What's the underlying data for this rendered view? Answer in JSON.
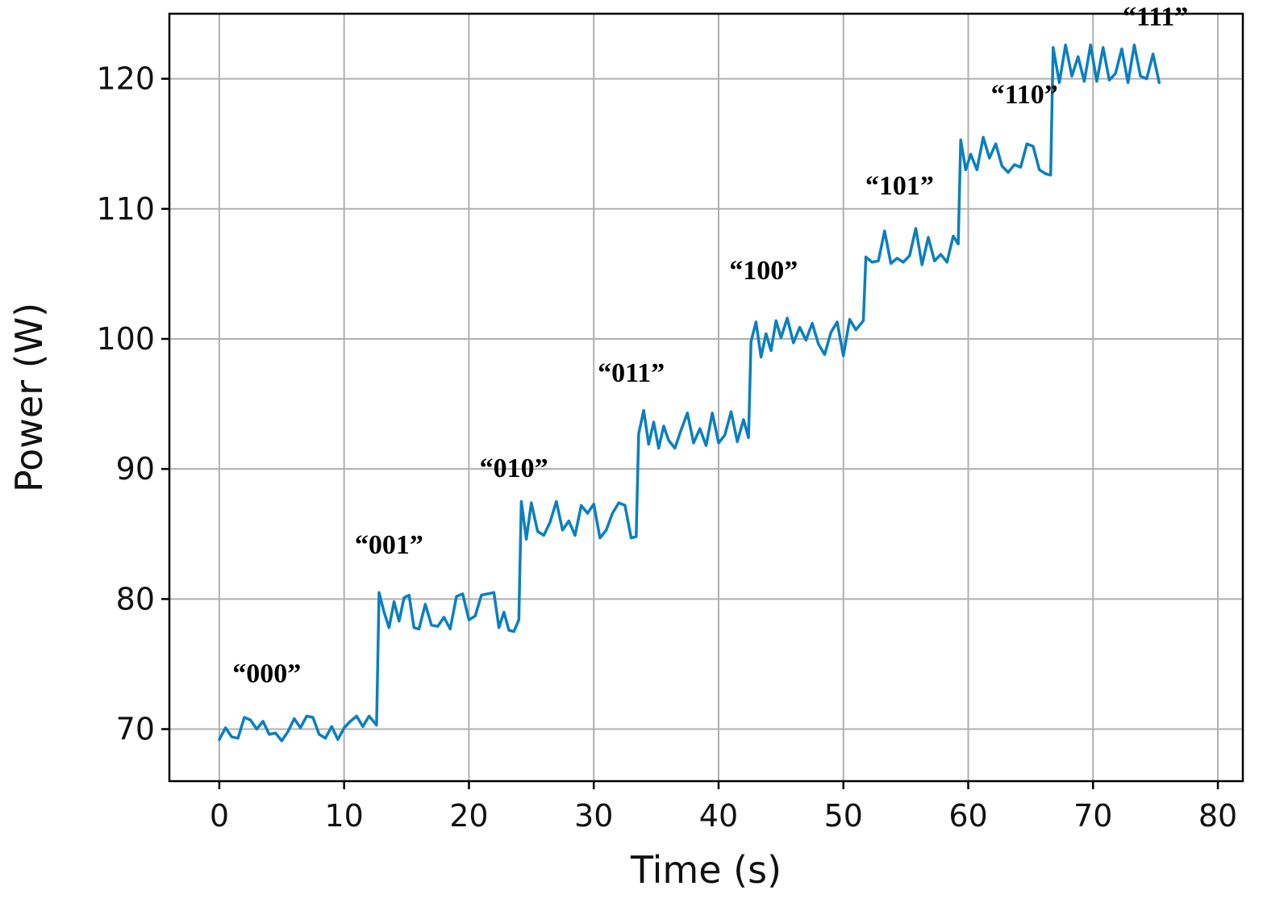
{
  "chart_data": {
    "type": "line",
    "title": "",
    "xlabel": "Time (s)",
    "ylabel": "Power (W)",
    "xlim": [
      -4,
      82
    ],
    "ylim": [
      66,
      125
    ],
    "xticks": [
      0,
      10,
      20,
      30,
      40,
      50,
      60,
      70,
      80
    ],
    "yticks": [
      70,
      80,
      90,
      100,
      110,
      120
    ],
    "grid": true,
    "line_color": "#0a7fc0",
    "annotations": [
      {
        "text": "“000”",
        "x": 3.8,
        "y": 73.6
      },
      {
        "text": "“001”",
        "x": 13.6,
        "y": 83.5
      },
      {
        "text": "“010”",
        "x": 23.6,
        "y": 89.4
      },
      {
        "text": "“011”",
        "x": 33.0,
        "y": 96.7
      },
      {
        "text": "“100”",
        "x": 43.6,
        "y": 104.6
      },
      {
        "text": "“101”",
        "x": 54.5,
        "y": 111.1
      },
      {
        "text": "“110”",
        "x": 64.5,
        "y": 118.1
      },
      {
        "text": "“111”",
        "x": 75.0,
        "y": 124.1
      }
    ],
    "series": [
      {
        "values": [
          [
            0.0,
            69.2
          ],
          [
            0.5,
            70.1
          ],
          [
            1.0,
            69.4
          ],
          [
            1.5,
            69.3
          ],
          [
            2.0,
            70.9
          ],
          [
            2.5,
            70.7
          ],
          [
            3.0,
            70.0
          ],
          [
            3.5,
            70.6
          ],
          [
            4.0,
            69.6
          ],
          [
            4.5,
            69.7
          ],
          [
            5.0,
            69.1
          ],
          [
            5.5,
            69.8
          ],
          [
            6.0,
            70.8
          ],
          [
            6.5,
            70.1
          ],
          [
            7.0,
            71.0
          ],
          [
            7.5,
            70.9
          ],
          [
            8.0,
            69.6
          ],
          [
            8.5,
            69.3
          ],
          [
            9.0,
            70.2
          ],
          [
            9.5,
            69.2
          ],
          [
            10.0,
            70.1
          ],
          [
            10.5,
            70.6
          ],
          [
            11.0,
            71.0
          ],
          [
            11.5,
            70.2
          ],
          [
            12.0,
            71.0
          ],
          [
            12.6,
            70.3
          ],
          [
            12.8,
            80.5
          ],
          [
            13.2,
            79.0
          ],
          [
            13.6,
            77.8
          ],
          [
            14.0,
            79.8
          ],
          [
            14.4,
            78.3
          ],
          [
            14.8,
            80.1
          ],
          [
            15.2,
            80.3
          ],
          [
            15.6,
            77.8
          ],
          [
            16.0,
            77.7
          ],
          [
            16.5,
            79.6
          ],
          [
            17.0,
            78.0
          ],
          [
            17.5,
            77.9
          ],
          [
            18.0,
            78.6
          ],
          [
            18.5,
            77.7
          ],
          [
            19.0,
            80.2
          ],
          [
            19.5,
            80.4
          ],
          [
            20.0,
            78.4
          ],
          [
            20.5,
            78.7
          ],
          [
            21.0,
            80.3
          ],
          [
            21.5,
            80.4
          ],
          [
            22.0,
            80.5
          ],
          [
            22.4,
            77.8
          ],
          [
            22.8,
            79.0
          ],
          [
            23.2,
            77.6
          ],
          [
            23.6,
            77.5
          ],
          [
            24.0,
            78.4
          ],
          [
            24.2,
            87.5
          ],
          [
            24.6,
            84.6
          ],
          [
            25.0,
            87.4
          ],
          [
            25.5,
            85.2
          ],
          [
            26.0,
            84.9
          ],
          [
            26.5,
            85.9
          ],
          [
            27.0,
            87.5
          ],
          [
            27.5,
            85.3
          ],
          [
            28.0,
            86.0
          ],
          [
            28.5,
            84.9
          ],
          [
            29.0,
            87.2
          ],
          [
            29.5,
            86.6
          ],
          [
            30.0,
            87.3
          ],
          [
            30.5,
            84.7
          ],
          [
            31.0,
            85.3
          ],
          [
            31.5,
            86.6
          ],
          [
            32.0,
            87.4
          ],
          [
            32.5,
            87.2
          ],
          [
            33.0,
            84.7
          ],
          [
            33.4,
            84.8
          ],
          [
            33.6,
            92.7
          ],
          [
            34.0,
            94.5
          ],
          [
            34.4,
            91.9
          ],
          [
            34.8,
            93.6
          ],
          [
            35.2,
            91.6
          ],
          [
            35.6,
            93.3
          ],
          [
            36.0,
            92.2
          ],
          [
            36.5,
            91.6
          ],
          [
            37.0,
            93.0
          ],
          [
            37.5,
            94.3
          ],
          [
            38.0,
            92.0
          ],
          [
            38.5,
            93.1
          ],
          [
            39.0,
            91.8
          ],
          [
            39.5,
            94.3
          ],
          [
            40.0,
            92.0
          ],
          [
            40.5,
            92.6
          ],
          [
            41.0,
            94.4
          ],
          [
            41.5,
            92.1
          ],
          [
            42.0,
            93.8
          ],
          [
            42.4,
            92.4
          ],
          [
            42.6,
            99.8
          ],
          [
            43.0,
            101.3
          ],
          [
            43.4,
            98.6
          ],
          [
            43.8,
            100.4
          ],
          [
            44.2,
            99.1
          ],
          [
            44.6,
            101.4
          ],
          [
            45.0,
            100.1
          ],
          [
            45.5,
            101.6
          ],
          [
            46.0,
            99.7
          ],
          [
            46.5,
            100.9
          ],
          [
            47.0,
            99.9
          ],
          [
            47.5,
            101.2
          ],
          [
            48.0,
            99.6
          ],
          [
            48.5,
            98.8
          ],
          [
            49.0,
            100.5
          ],
          [
            49.5,
            101.3
          ],
          [
            50.0,
            98.7
          ],
          [
            50.5,
            101.5
          ],
          [
            51.0,
            100.7
          ],
          [
            51.6,
            101.4
          ],
          [
            51.8,
            106.3
          ],
          [
            52.3,
            105.9
          ],
          [
            52.8,
            106.0
          ],
          [
            53.3,
            108.3
          ],
          [
            53.8,
            105.8
          ],
          [
            54.3,
            106.2
          ],
          [
            54.8,
            105.9
          ],
          [
            55.3,
            106.4
          ],
          [
            55.8,
            108.5
          ],
          [
            56.3,
            105.7
          ],
          [
            56.8,
            107.8
          ],
          [
            57.3,
            106.0
          ],
          [
            57.8,
            106.5
          ],
          [
            58.3,
            105.9
          ],
          [
            58.8,
            107.9
          ],
          [
            59.2,
            107.3
          ],
          [
            59.4,
            115.3
          ],
          [
            59.8,
            113.0
          ],
          [
            60.2,
            114.2
          ],
          [
            60.7,
            113.0
          ],
          [
            61.2,
            115.5
          ],
          [
            61.7,
            113.9
          ],
          [
            62.2,
            115.0
          ],
          [
            62.7,
            113.3
          ],
          [
            63.2,
            112.8
          ],
          [
            63.7,
            113.4
          ],
          [
            64.2,
            113.2
          ],
          [
            64.7,
            115.0
          ],
          [
            65.2,
            114.8
          ],
          [
            65.7,
            113.0
          ],
          [
            66.2,
            112.7
          ],
          [
            66.6,
            112.6
          ],
          [
            66.8,
            122.4
          ],
          [
            67.3,
            119.7
          ],
          [
            67.8,
            122.6
          ],
          [
            68.3,
            120.2
          ],
          [
            68.8,
            121.7
          ],
          [
            69.3,
            119.8
          ],
          [
            69.8,
            122.6
          ],
          [
            70.3,
            119.8
          ],
          [
            70.8,
            122.4
          ],
          [
            71.3,
            119.9
          ],
          [
            71.8,
            120.4
          ],
          [
            72.3,
            122.3
          ],
          [
            72.8,
            119.7
          ],
          [
            73.3,
            122.6
          ],
          [
            73.8,
            120.2
          ],
          [
            74.3,
            120.0
          ],
          [
            74.8,
            121.9
          ],
          [
            75.3,
            119.7
          ]
        ]
      }
    ]
  }
}
